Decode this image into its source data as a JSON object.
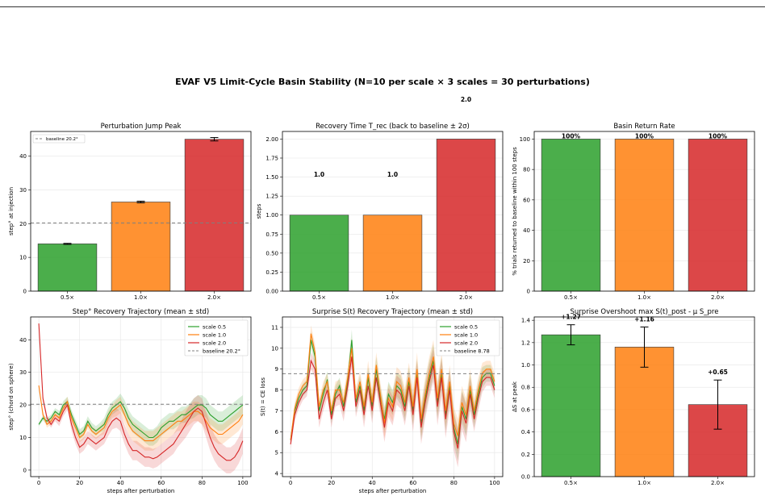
{
  "figure": {
    "suptitle": "EVAF V5 Limit-Cycle Basin Stability  (N=10 per scale × 3 scales = 30 perturbations)",
    "colors": {
      "scale_0_5": "#2ca02c",
      "scale_1_0": "#ff7f0e",
      "scale_2_0": "#d62728",
      "baseline": "#808080"
    }
  },
  "chart_data": [
    {
      "id": "jump",
      "type": "bar",
      "title": "Perturbation Jump Peak",
      "xlabel": "",
      "ylabel": "step° at injection",
      "categories": [
        "0.5×",
        "1.0×",
        "2.0×"
      ],
      "values": [
        14.0,
        26.4,
        45.0
      ],
      "errors": [
        0.15,
        0.25,
        0.5
      ],
      "ylim": [
        0,
        47.3
      ],
      "yticks": [
        0,
        10,
        20,
        30,
        40
      ],
      "baseline": {
        "value": 20.2,
        "label": "baseline 20.2°"
      },
      "legend": "top-left",
      "grid": true
    },
    {
      "id": "trec",
      "type": "bar",
      "title": "Recovery Time  T_rec  (back to baseline ± 2σ)",
      "xlabel": "",
      "ylabel": "steps",
      "categories": [
        "0.5×",
        "1.0×",
        "2.0×"
      ],
      "values": [
        1.0,
        1.0,
        2.0
      ],
      "data_labels": [
        "1.0",
        "1.0",
        "2.0"
      ],
      "ylim": [
        0,
        2.1
      ],
      "yticks": [
        "0.00",
        "0.25",
        "0.50",
        "0.75",
        "1.00",
        "1.25",
        "1.50",
        "1.75",
        "2.00"
      ],
      "grid": true
    },
    {
      "id": "basin",
      "type": "bar",
      "title": "Basin Return Rate",
      "xlabel": "",
      "ylabel": "% trials returned to baseline within 100 steps",
      "categories": [
        "0.5×",
        "1.0×",
        "2.0×"
      ],
      "values": [
        100,
        100,
        100
      ],
      "data_labels": [
        "100%",
        "100%",
        "100%"
      ],
      "ylim": [
        0,
        105
      ],
      "yticks": [
        0,
        20,
        40,
        60,
        80,
        100
      ],
      "grid": true
    },
    {
      "id": "steptraj",
      "type": "line",
      "title": "Step° Recovery Trajectory  (mean ± std)",
      "xlabel": "steps after perturbation",
      "ylabel": "step° (chord on sphere)",
      "xlim": [
        -4,
        104
      ],
      "ylim": [
        -2,
        47
      ],
      "xticks": [
        0,
        20,
        40,
        60,
        80,
        100
      ],
      "yticks": [
        0,
        10,
        20,
        30,
        40
      ],
      "legend": "top-right",
      "baseline": {
        "value": 20.2,
        "label": "baseline 20.2°"
      },
      "x": [
        0,
        2,
        4,
        6,
        8,
        10,
        12,
        14,
        16,
        18,
        20,
        22,
        24,
        26,
        28,
        30,
        32,
        34,
        36,
        38,
        40,
        42,
        44,
        46,
        48,
        50,
        52,
        54,
        56,
        58,
        60,
        62,
        64,
        66,
        68,
        70,
        72,
        74,
        76,
        78,
        80,
        82,
        84,
        86,
        88,
        90,
        92,
        94,
        96,
        98,
        100
      ],
      "series": [
        {
          "name": "scale 0.5",
          "color": "#2ca02c",
          "values": [
            14,
            16,
            15,
            16,
            18,
            17,
            20,
            21,
            17,
            14,
            11,
            12,
            15,
            13,
            12,
            13,
            14,
            17,
            19,
            20,
            21,
            19,
            16,
            14,
            13,
            12,
            11,
            10,
            10,
            11,
            13,
            14,
            15,
            15,
            16,
            17,
            17,
            18,
            19,
            20,
            20,
            19,
            17,
            16,
            15,
            15,
            16,
            17,
            18,
            19,
            20
          ],
          "std": [
            0.5,
            0.8,
            1,
            1,
            1,
            1.2,
            1.2,
            1.5,
            1.5,
            1.5,
            1.5,
            1.5,
            1.5,
            1.5,
            1.5,
            1.5,
            2,
            2,
            2,
            2,
            2.5,
            2.5,
            2.5,
            2.5,
            2.5,
            2.5,
            2.5,
            2.5,
            2.5,
            2.5,
            2.5,
            2.5,
            2.5,
            2.5,
            2.5,
            2.5,
            2.5,
            2.5,
            3,
            3,
            3,
            3,
            3,
            3,
            3,
            3,
            3,
            3,
            3,
            3,
            3
          ]
        },
        {
          "name": "scale 1.0",
          "color": "#ff7f0e",
          "values": [
            26,
            17,
            14,
            15,
            17,
            16,
            19,
            21,
            16,
            13,
            10,
            11,
            14,
            12,
            11,
            12,
            13,
            16,
            18,
            19,
            20,
            17,
            14,
            12,
            11,
            10,
            9,
            9,
            9,
            10,
            11,
            12,
            13,
            14,
            15,
            15,
            16,
            17,
            18,
            18,
            17,
            15,
            13,
            12,
            11,
            11,
            12,
            13,
            14,
            15,
            17
          ],
          "std": [
            0.5,
            1,
            1,
            1,
            1,
            1.2,
            1.2,
            1.5,
            1.5,
            1.5,
            1.5,
            1.5,
            1.5,
            1.5,
            1.5,
            1.5,
            2,
            2,
            2,
            2.5,
            2.5,
            2.5,
            3,
            3,
            3,
            3,
            3,
            3,
            3,
            3,
            3,
            3,
            3,
            3,
            3,
            3,
            3,
            3,
            3,
            3,
            3,
            3,
            3,
            3,
            3,
            3,
            3,
            3,
            3,
            3,
            3
          ]
        },
        {
          "name": "scale 2.0",
          "color": "#d62728",
          "values": [
            45,
            22,
            16,
            14,
            16,
            15,
            18,
            20,
            14,
            10,
            7,
            8,
            10,
            9,
            8,
            9,
            10,
            13,
            15,
            16,
            15,
            11,
            8,
            6,
            6,
            5,
            4,
            4,
            3.5,
            4,
            5,
            6,
            7,
            8,
            10,
            12,
            14,
            16,
            18,
            19,
            18,
            14,
            10,
            7,
            5,
            4,
            3,
            3,
            4,
            6,
            9
          ],
          "std": [
            0.5,
            1,
            1,
            1,
            1,
            1.5,
            1.5,
            1.5,
            2,
            2,
            2,
            2,
            2,
            2,
            2,
            2,
            2,
            2.5,
            2.5,
            3,
            3,
            3,
            3,
            3,
            3,
            3,
            3,
            3,
            3,
            3,
            3,
            3,
            3,
            3,
            3,
            3.5,
            4,
            4,
            4,
            4,
            4,
            4,
            4,
            4,
            4,
            4,
            4,
            4,
            4,
            4,
            4
          ]
        }
      ]
    },
    {
      "id": "surprise",
      "type": "line",
      "title": "Surprise S(t) Recovery Trajectory  (mean ± std)",
      "xlabel": "steps after perturbation",
      "ylabel": "S(t) = CE loss",
      "xlim": [
        -4,
        104
      ],
      "ylim": [
        3.85,
        11.5
      ],
      "xticks": [
        0,
        20,
        40,
        60,
        80,
        100
      ],
      "yticks": [
        4,
        5,
        6,
        7,
        8,
        9,
        10,
        11
      ],
      "legend": "top-right",
      "baseline": {
        "value": 8.78,
        "label": "baseline 8.78"
      },
      "x": [
        0,
        2,
        4,
        6,
        8,
        10,
        12,
        14,
        16,
        18,
        20,
        22,
        24,
        26,
        28,
        30,
        32,
        34,
        36,
        38,
        40,
        42,
        44,
        46,
        48,
        50,
        52,
        54,
        56,
        58,
        60,
        62,
        64,
        66,
        68,
        70,
        72,
        74,
        76,
        78,
        80,
        82,
        84,
        86,
        88,
        90,
        92,
        94,
        96,
        98,
        100
      ],
      "series": [
        {
          "name": "scale 0.5",
          "color": "#2ca02c",
          "values": [
            5.6,
            7.0,
            7.6,
            8.0,
            8.2,
            10.4,
            9.6,
            7.0,
            7.8,
            8.5,
            6.8,
            7.8,
            8.2,
            7.2,
            8.4,
            10.4,
            7.4,
            8.2,
            7.0,
            8.6,
            7.2,
            9.0,
            7.6,
            6.6,
            7.8,
            7.4,
            8.2,
            8.0,
            7.2,
            8.4,
            7.0,
            8.8,
            6.4,
            7.6,
            8.6,
            9.4,
            7.4,
            8.8,
            6.8,
            8.2,
            6.2,
            5.4,
            7.2,
            6.6,
            8.0,
            6.8,
            7.8,
            8.6,
            8.8,
            8.8,
            8.2
          ],
          "std": [
            0.2,
            0.3,
            0.3,
            0.3,
            0.3,
            0.4,
            0.4,
            0.4,
            0.4,
            0.4,
            0.4,
            0.4,
            0.4,
            0.4,
            0.5,
            0.5,
            0.5,
            0.5,
            0.5,
            0.5,
            0.6,
            0.6,
            0.6,
            0.6,
            0.6,
            0.6,
            0.6,
            0.7,
            0.7,
            0.7,
            0.7,
            0.7,
            0.8,
            0.8,
            0.8,
            0.8,
            0.8,
            0.8,
            0.8,
            0.8,
            0.8,
            0.8,
            0.8,
            0.8,
            0.8,
            0.6,
            0.6,
            0.5,
            0.4,
            0.4,
            0.4
          ]
        },
        {
          "name": "scale 1.0",
          "color": "#ff7f0e",
          "values": [
            5.6,
            7.1,
            7.8,
            8.2,
            8.4,
            10.7,
            9.8,
            7.2,
            8.0,
            8.4,
            7.0,
            8.0,
            8.0,
            7.4,
            8.6,
            10.0,
            7.6,
            8.4,
            7.2,
            8.8,
            7.4,
            9.2,
            7.8,
            6.4,
            7.6,
            7.2,
            8.4,
            8.2,
            7.4,
            8.6,
            7.2,
            9.0,
            6.6,
            7.8,
            8.8,
            9.6,
            7.6,
            9.0,
            7.0,
            8.4,
            6.4,
            5.8,
            7.4,
            6.8,
            8.2,
            7.0,
            8.0,
            8.8,
            9.0,
            9.0,
            8.4
          ],
          "std": [
            0.2,
            0.3,
            0.3,
            0.3,
            0.3,
            0.4,
            0.4,
            0.4,
            0.4,
            0.4,
            0.4,
            0.4,
            0.5,
            0.5,
            0.5,
            0.5,
            0.5,
            0.5,
            0.6,
            0.6,
            0.6,
            0.6,
            0.6,
            0.7,
            0.7,
            0.7,
            0.7,
            0.7,
            0.7,
            0.7,
            0.8,
            0.8,
            0.8,
            0.8,
            0.8,
            0.8,
            0.8,
            0.8,
            0.8,
            0.8,
            0.8,
            0.8,
            0.8,
            0.8,
            0.8,
            0.6,
            0.6,
            0.5,
            0.4,
            0.4,
            0.4
          ]
        },
        {
          "name": "scale 2.0",
          "color": "#d62728",
          "values": [
            5.4,
            6.8,
            7.4,
            7.8,
            8.0,
            9.4,
            9.0,
            6.6,
            7.4,
            8.0,
            6.6,
            7.6,
            7.8,
            7.0,
            8.2,
            9.6,
            7.2,
            8.0,
            6.8,
            8.2,
            7.0,
            8.6,
            7.4,
            6.2,
            7.4,
            7.0,
            8.0,
            7.8,
            7.0,
            8.2,
            6.8,
            8.6,
            6.2,
            7.4,
            8.4,
            9.2,
            7.2,
            8.6,
            6.6,
            8.0,
            6.0,
            5.2,
            7.0,
            6.4,
            7.8,
            6.6,
            7.6,
            8.4,
            8.6,
            8.6,
            8.0
          ],
          "std": [
            0.2,
            0.3,
            0.3,
            0.3,
            0.3,
            0.4,
            0.4,
            0.4,
            0.4,
            0.4,
            0.4,
            0.4,
            0.5,
            0.5,
            0.5,
            0.5,
            0.5,
            0.5,
            0.6,
            0.6,
            0.6,
            0.6,
            0.6,
            0.7,
            0.7,
            0.7,
            0.7,
            0.7,
            0.7,
            0.7,
            0.8,
            0.8,
            0.8,
            0.8,
            0.8,
            0.8,
            0.9,
            0.9,
            0.9,
            0.9,
            0.9,
            0.9,
            0.9,
            0.9,
            0.8,
            0.6,
            0.6,
            0.5,
            0.4,
            0.4,
            0.4
          ]
        }
      ]
    },
    {
      "id": "overshoot",
      "type": "bar",
      "title": "Surprise Overshoot  max S(t)_post - μ S_pre",
      "xlabel": "",
      "ylabel": "ΔS at peak",
      "categories": [
        "0.5×",
        "1.0×",
        "2.0×"
      ],
      "values": [
        1.27,
        1.16,
        0.645
      ],
      "errors": [
        0.09,
        0.18,
        0.22
      ],
      "data_labels": [
        "+1.27",
        "+1.16",
        "+0.65"
      ],
      "ylim": [
        0,
        1.43
      ],
      "yticks": [
        "0.0",
        "0.2",
        "0.4",
        "0.6",
        "0.8",
        "1.0",
        "1.2",
        "1.4"
      ],
      "grid": true
    }
  ]
}
